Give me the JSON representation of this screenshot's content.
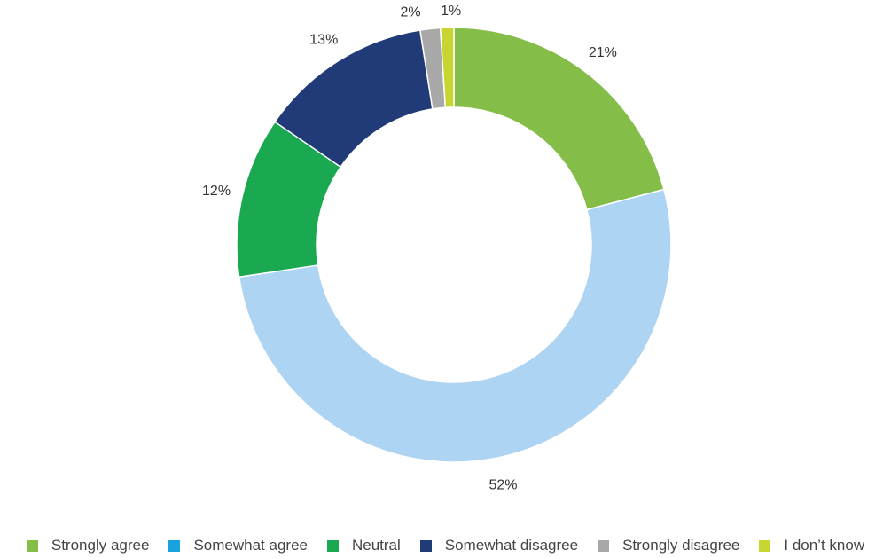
{
  "chart_data": {
    "type": "pie",
    "donut": true,
    "title": "",
    "slices": [
      {
        "label": "Strongly agree",
        "value": 21,
        "display": "21%",
        "color": "#84bd48"
      },
      {
        "label": "Somewhat agree",
        "value": 52,
        "display": "52%",
        "color": "#aed4f4"
      },
      {
        "label": "Neutral",
        "value": 12,
        "display": "12%",
        "color": "#1aa851"
      },
      {
        "label": "Somewhat disagree",
        "value": 13,
        "display": "13%",
        "color": "#213a78"
      },
      {
        "label": "Strongly disagree",
        "value": 1.5,
        "display": "2%",
        "color": "#a8a8a8"
      },
      {
        "label": "I don’t know",
        "value": 1,
        "display": "1%",
        "color": "#c7d530"
      }
    ],
    "legend": {
      "placement": "bottom",
      "entries": [
        {
          "label": "Strongly agree",
          "color": "#84bd48"
        },
        {
          "label": "Somewhat agree",
          "color": "#1aa2dc"
        },
        {
          "label": "Neutral",
          "color": "#1aa851"
        },
        {
          "label": "Somewhat disagree",
          "color": "#213a78"
        },
        {
          "label": "Strongly disagree",
          "color": "#a8a8a8"
        },
        {
          "label": "I don’t know",
          "color": "#c7d530"
        }
      ]
    }
  }
}
